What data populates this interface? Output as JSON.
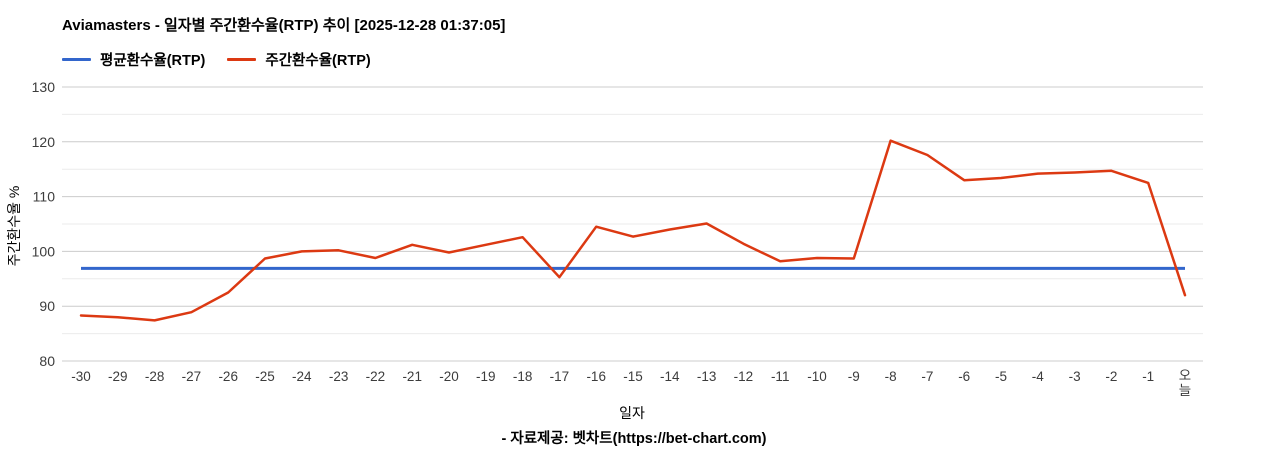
{
  "chart_data": {
    "type": "line",
    "title": "Aviamasters - 일자별 주간환수율(RTP) 추이 [2025-12-28 01:37:05]",
    "xlabel": "일자",
    "ylabel": "주간환수율 %",
    "ylim": [
      80,
      130
    ],
    "yticks": [
      80,
      90,
      100,
      110,
      120,
      130
    ],
    "yticks_minor": [
      85,
      95,
      105,
      115,
      125
    ],
    "grid": true,
    "legend_position": "top-left",
    "categories": [
      "-30",
      "-29",
      "-28",
      "-27",
      "-26",
      "-25",
      "-24",
      "-23",
      "-22",
      "-21",
      "-20",
      "-19",
      "-18",
      "-17",
      "-16",
      "-15",
      "-14",
      "-13",
      "-12",
      "-11",
      "-10",
      "-9",
      "-8",
      "-7",
      "-6",
      "-5",
      "-4",
      "-3",
      "-2",
      "-1",
      "오늘"
    ],
    "series": [
      {
        "name": "평균환수율(RTP)",
        "color": "#3366cc",
        "kind": "constant",
        "value": 96.9
      },
      {
        "name": "주간환수율(RTP)",
        "color": "#dc3912",
        "kind": "line",
        "values": [
          88.3,
          88.0,
          87.4,
          88.9,
          92.5,
          98.7,
          100.0,
          100.2,
          98.8,
          101.2,
          99.8,
          101.2,
          102.6,
          95.3,
          104.5,
          102.7,
          104.0,
          105.1,
          101.4,
          98.2,
          98.8,
          98.7,
          120.2,
          117.6,
          113.0,
          113.4,
          114.2,
          114.4,
          114.7,
          112.5,
          92.0
        ]
      }
    ]
  },
  "colors": {
    "grid_major": "#cccccc",
    "grid_minor": "#ebebeb",
    "axis_text": "#3c3c3c",
    "axis_title_text": "#000000"
  },
  "footer": {
    "credit": "- 자료제공: 벳차트(https://bet-chart.com)"
  }
}
